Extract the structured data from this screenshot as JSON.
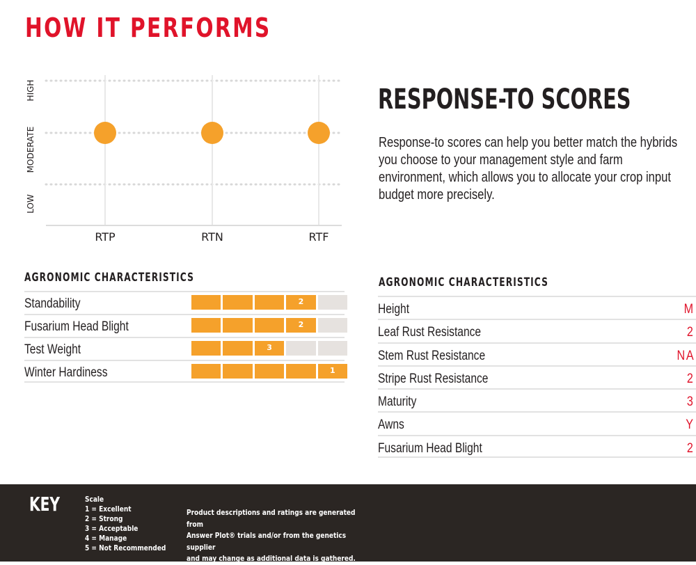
{
  "page_title": "HOW IT PERFORMS",
  "chart_data": {
    "type": "scatter",
    "title": "",
    "categories": [
      "RTP",
      "RTN",
      "RTF"
    ],
    "y_levels": [
      "LOW",
      "MODERATE",
      "HIGH"
    ],
    "values": [
      "MODERATE",
      "MODERATE",
      "MODERATE"
    ],
    "point_color": "#f5a12b",
    "grid": true
  },
  "response_scores": {
    "heading": "RESPONSE-TO SCORES",
    "description": "Response-to scores can help you better match the hybrids you choose to your management style and farm environment, which allows you to allocate your crop input budget more precisely."
  },
  "agronomic_left": {
    "heading": "AGRONOMIC CHARACTERISTICS",
    "scale_segments": 5,
    "fill_color": "#f5a12b",
    "empty_color": "#e6e2df",
    "rows": [
      {
        "label": "Standability",
        "score": "2"
      },
      {
        "label": "Fusarium Head Blight",
        "score": "2"
      },
      {
        "label": "Test Weight",
        "score": "3"
      },
      {
        "label": "Winter Hardiness",
        "score": "1"
      }
    ]
  },
  "agronomic_right": {
    "heading": "AGRONOMIC CHARACTERISTICS",
    "value_color": "#e0132a",
    "rows": [
      {
        "label": "Height",
        "value": "M"
      },
      {
        "label": "Leaf Rust Resistance",
        "value": "2"
      },
      {
        "label": "Stem Rust Resistance",
        "value": "NA"
      },
      {
        "label": "Stripe Rust Resistance",
        "value": "2"
      },
      {
        "label": "Maturity",
        "value": "3"
      },
      {
        "label": "Awns",
        "value": "Y"
      },
      {
        "label": "Fusarium Head Blight",
        "value": "2"
      }
    ]
  },
  "key": {
    "title": "KEY",
    "scale_heading": "Scale",
    "scale_items": [
      "1 = Excellent",
      "2 = Strong",
      "3 = Acceptable",
      "4 = Manage",
      "5 = Not Recommended"
    ],
    "note_lines": [
      "Product descriptions and ratings are generated from",
      "Answer Plot® trials and/or from the genetics supplier",
      "and may change as additional data is gathered."
    ]
  }
}
